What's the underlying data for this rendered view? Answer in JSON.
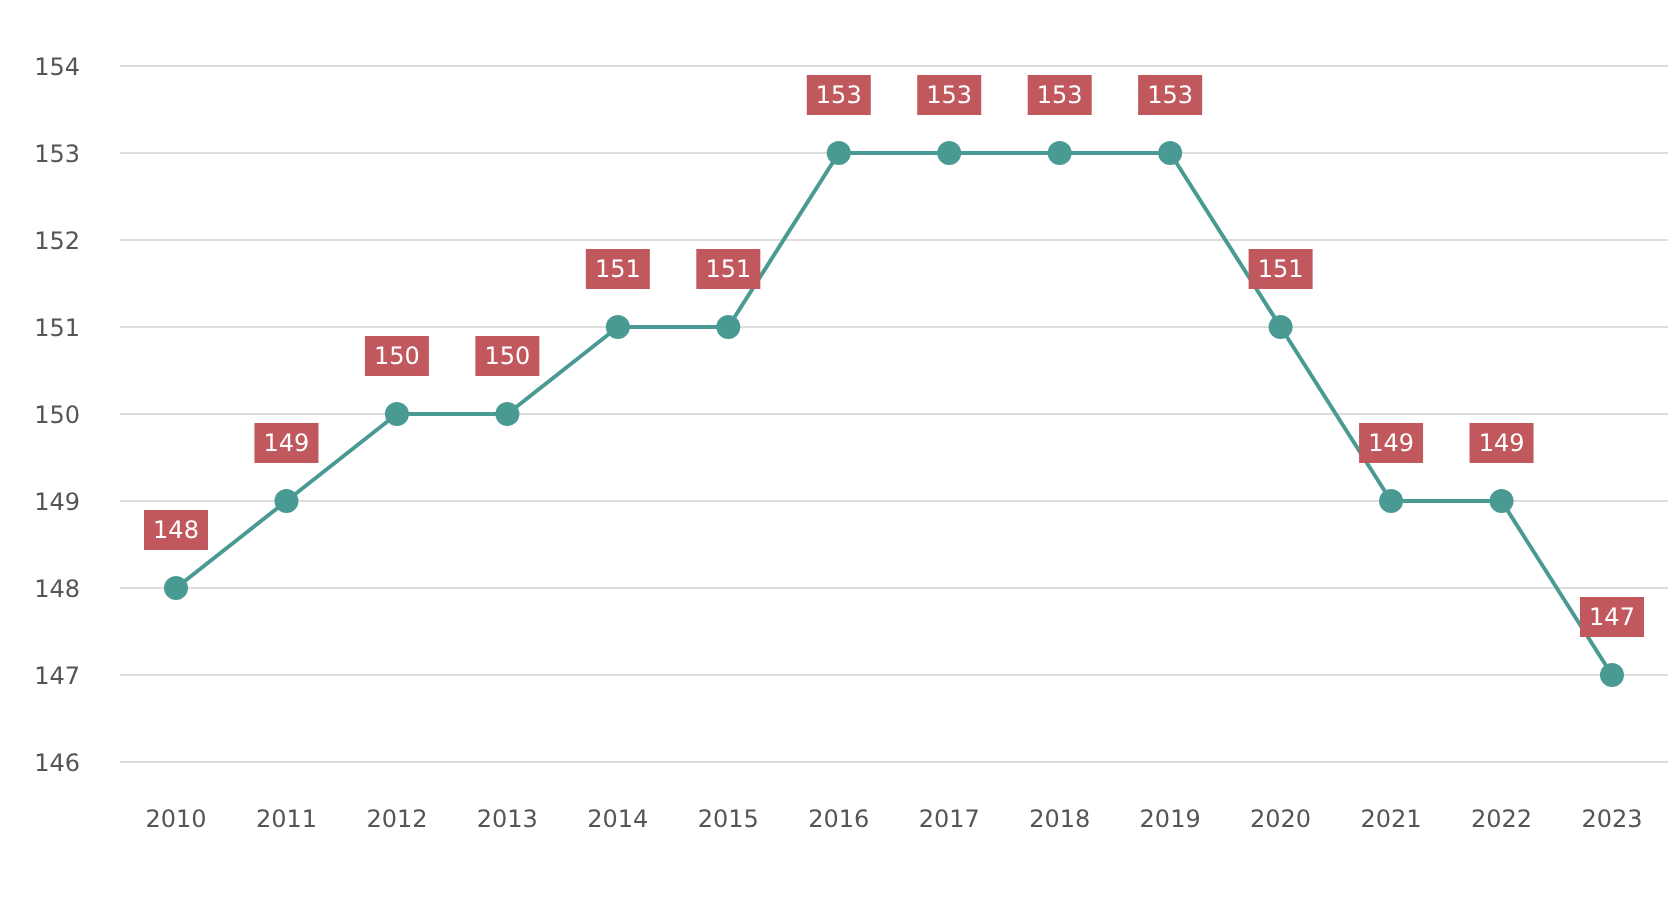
{
  "chart_data": {
    "type": "line",
    "categories": [
      "2010",
      "2011",
      "2012",
      "2013",
      "2014",
      "2015",
      "2016",
      "2017",
      "2018",
      "2019",
      "2020",
      "2021",
      "2022",
      "2023"
    ],
    "series": [
      {
        "color": "#4a9a94",
        "values": [
          148,
          149,
          150,
          150,
          151,
          151,
          153,
          153,
          153,
          153,
          151,
          149,
          149,
          147
        ]
      }
    ],
    "ylim": [
      146,
      154
    ],
    "yticks": [
      146,
      147,
      148,
      149,
      150,
      151,
      152,
      153,
      154
    ],
    "grid": "y",
    "marker": "circle",
    "data_labels": true,
    "legend": false
  }
}
